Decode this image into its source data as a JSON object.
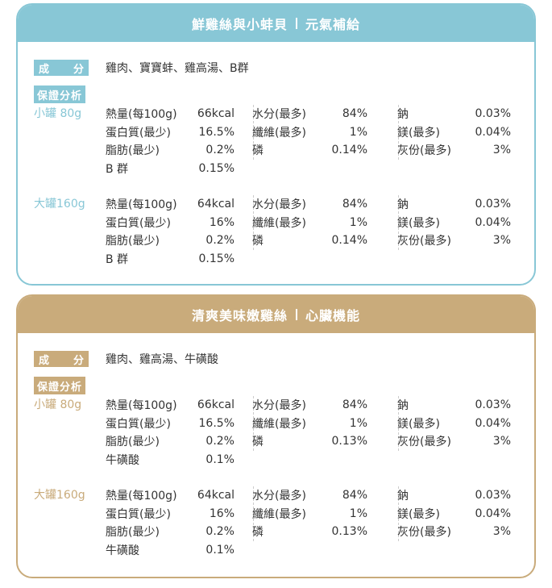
{
  "colors": {
    "blue": "#88c7d6",
    "gold": "#c9ab7b"
  },
  "cards": [
    {
      "title_main": "鮮雞絲與小蚌貝",
      "title_sub": "元氣補給",
      "ingredient_label": [
        "成",
        "分"
      ],
      "ingredients": "雞肉、寶寶蚌、雞高湯、B群",
      "guarantee_label": "保證分析",
      "sizes": [
        {
          "label": "小罐 80g",
          "col1": [
            [
              "熱量(每100g)",
              "66kcal"
            ],
            [
              "蛋白質(最少)",
              "16.5%"
            ],
            [
              "脂肪(最少)",
              "0.2%"
            ],
            [
              "B 群",
              "0.15%"
            ]
          ],
          "col2": [
            [
              "水分(最多)",
              "84%"
            ],
            [
              "纖維(最多)",
              "1%"
            ],
            [
              "磷",
              "0.14%"
            ]
          ],
          "col3": [
            [
              "鈉",
              "0.03%"
            ],
            [
              "鎂(最多)",
              "0.04%"
            ],
            [
              "灰份(最多)",
              "3%"
            ]
          ]
        },
        {
          "label": "大罐160g",
          "col1": [
            [
              "熱量(每100g)",
              "64kcal"
            ],
            [
              "蛋白質(最少)",
              "16%"
            ],
            [
              "脂肪(最少)",
              "0.2%"
            ],
            [
              "B 群",
              "0.15%"
            ]
          ],
          "col2": [
            [
              "水分(最多)",
              "84%"
            ],
            [
              "纖維(最多)",
              "1%"
            ],
            [
              "磷",
              "0.14%"
            ]
          ],
          "col3": [
            [
              "鈉",
              "0.03%"
            ],
            [
              "鎂(最多)",
              "0.04%"
            ],
            [
              "灰份(最多)",
              "3%"
            ]
          ]
        }
      ]
    },
    {
      "title_main": "清爽美味嫩雞絲",
      "title_sub": "心臟機能",
      "ingredient_label": [
        "成",
        "分"
      ],
      "ingredients": "雞肉、雞高湯、牛磺酸",
      "guarantee_label": "保證分析",
      "sizes": [
        {
          "label": "小罐 80g",
          "col1": [
            [
              "熱量(每100g)",
              "66kcal"
            ],
            [
              "蛋白質(最少)",
              "16.5%"
            ],
            [
              "脂肪(最少)",
              "0.2%"
            ],
            [
              "牛磺酸",
              "0.1%"
            ]
          ],
          "col2": [
            [
              "水分(最多)",
              "84%"
            ],
            [
              "纖維(最多)",
              "1%"
            ],
            [
              "磷",
              "0.13%"
            ]
          ],
          "col3": [
            [
              "鈉",
              "0.03%"
            ],
            [
              "鎂(最多)",
              "0.04%"
            ],
            [
              "灰份(最多)",
              "3%"
            ]
          ]
        },
        {
          "label": "大罐160g",
          "col1": [
            [
              "熱量(每100g)",
              "64kcal"
            ],
            [
              "蛋白質(最少)",
              "16%"
            ],
            [
              "脂肪(最少)",
              "0.2%"
            ],
            [
              "牛磺酸",
              "0.1%"
            ]
          ],
          "col2": [
            [
              "水分(最多)",
              "84%"
            ],
            [
              "纖維(最多)",
              "1%"
            ],
            [
              "磷",
              "0.13%"
            ]
          ],
          "col3": [
            [
              "鈉",
              "0.03%"
            ],
            [
              "鎂(最多)",
              "0.04%"
            ],
            [
              "灰份(最多)",
              "3%"
            ]
          ]
        }
      ]
    }
  ]
}
